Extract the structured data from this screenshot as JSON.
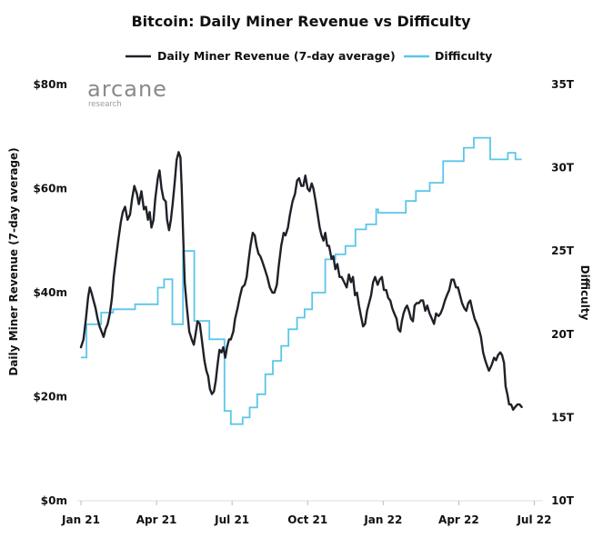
{
  "chart_data": {
    "type": "line",
    "title": "Bitcoin: Daily Miner Revenue vs Difficulty",
    "brand": {
      "name": "arcane",
      "tagline": "research"
    },
    "x_axis": {
      "ticks": [
        "Jan 21",
        "Apr 21",
        "Jul 21",
        "Oct 21",
        "Jan 22",
        "Apr 22",
        "Jul 22"
      ],
      "tick_months": [
        0,
        3,
        6,
        9,
        12,
        15,
        18
      ],
      "range_months": [
        0,
        18.2
      ]
    },
    "y_left": {
      "label": "Daily Miner Revenue (7-day average)",
      "range": [
        0,
        80
      ],
      "ticks": [
        0,
        20,
        40,
        60,
        80
      ],
      "tick_labels": [
        "$0m",
        "$20m",
        "$40m",
        "$60m",
        "$80m"
      ]
    },
    "y_right": {
      "label": "Difficulty",
      "range": [
        10,
        35
      ],
      "ticks": [
        10,
        15,
        20,
        25,
        30,
        35
      ],
      "tick_labels": [
        "10T",
        "15T",
        "20T",
        "25T",
        "30T",
        "35T"
      ]
    },
    "series": [
      {
        "name": "Daily Miner Revenue (7-day average)",
        "axis": "left",
        "unit": "$m",
        "color": "#1f2128",
        "points": [
          [
            0.0,
            29.5
          ],
          [
            0.1,
            31
          ],
          [
            0.2,
            35
          ],
          [
            0.28,
            39
          ],
          [
            0.35,
            41
          ],
          [
            0.42,
            40
          ],
          [
            0.5,
            38.5
          ],
          [
            0.58,
            37
          ],
          [
            0.66,
            35
          ],
          [
            0.74,
            33.5
          ],
          [
            0.82,
            32.5
          ],
          [
            0.9,
            31.5
          ],
          [
            0.98,
            33
          ],
          [
            1.06,
            34
          ],
          [
            1.15,
            36
          ],
          [
            1.23,
            39
          ],
          [
            1.3,
            43
          ],
          [
            1.4,
            47
          ],
          [
            1.48,
            50
          ],
          [
            1.58,
            53.5
          ],
          [
            1.66,
            55.5
          ],
          [
            1.75,
            56.5
          ],
          [
            1.85,
            54
          ],
          [
            1.95,
            55
          ],
          [
            2.03,
            58
          ],
          [
            2.12,
            60.5
          ],
          [
            2.22,
            59
          ],
          [
            2.3,
            57
          ],
          [
            2.4,
            59.5
          ],
          [
            2.5,
            56
          ],
          [
            2.58,
            56.5
          ],
          [
            2.66,
            54
          ],
          [
            2.73,
            55.5
          ],
          [
            2.8,
            52.5
          ],
          [
            2.88,
            54
          ],
          [
            2.95,
            58
          ],
          [
            3.05,
            62
          ],
          [
            3.12,
            63.5
          ],
          [
            3.2,
            60
          ],
          [
            3.28,
            58
          ],
          [
            3.37,
            57.5
          ],
          [
            3.42,
            54
          ],
          [
            3.5,
            52
          ],
          [
            3.57,
            54
          ],
          [
            3.64,
            57
          ],
          [
            3.72,
            61
          ],
          [
            3.8,
            65.5
          ],
          [
            3.88,
            67
          ],
          [
            3.95,
            66
          ],
          [
            4.0,
            60
          ],
          [
            4.05,
            52
          ],
          [
            4.12,
            42
          ],
          [
            4.2,
            37.5
          ],
          [
            4.3,
            32.5
          ],
          [
            4.4,
            31
          ],
          [
            4.48,
            30
          ],
          [
            4.55,
            32
          ],
          [
            4.63,
            34.5
          ],
          [
            4.72,
            34
          ],
          [
            4.8,
            31
          ],
          [
            4.9,
            27
          ],
          [
            4.98,
            25
          ],
          [
            5.05,
            24
          ],
          [
            5.12,
            21.5
          ],
          [
            5.2,
            20.5
          ],
          [
            5.28,
            21
          ],
          [
            5.35,
            23
          ],
          [
            5.42,
            26
          ],
          [
            5.5,
            29
          ],
          [
            5.58,
            28.5
          ],
          [
            5.65,
            29.5
          ],
          [
            5.73,
            27.5
          ],
          [
            5.8,
            29.5
          ],
          [
            5.88,
            31
          ],
          [
            5.95,
            31
          ],
          [
            6.05,
            32.5
          ],
          [
            6.12,
            35
          ],
          [
            6.22,
            37
          ],
          [
            6.3,
            39
          ],
          [
            6.4,
            41
          ],
          [
            6.5,
            41.5
          ],
          [
            6.58,
            43
          ],
          [
            6.65,
            46
          ],
          [
            6.73,
            49
          ],
          [
            6.82,
            51.5
          ],
          [
            6.9,
            51
          ],
          [
            6.97,
            49
          ],
          [
            7.05,
            47.5
          ],
          [
            7.12,
            47
          ],
          [
            7.2,
            46
          ],
          [
            7.3,
            44.5
          ],
          [
            7.4,
            43
          ],
          [
            7.5,
            41
          ],
          [
            7.6,
            40
          ],
          [
            7.68,
            40
          ],
          [
            7.78,
            41.5
          ],
          [
            7.85,
            45
          ],
          [
            7.95,
            49
          ],
          [
            8.05,
            51.5
          ],
          [
            8.12,
            51
          ],
          [
            8.22,
            52.5
          ],
          [
            8.3,
            55
          ],
          [
            8.4,
            57.5
          ],
          [
            8.5,
            59
          ],
          [
            8.58,
            61.5
          ],
          [
            8.66,
            62
          ],
          [
            8.75,
            60.5
          ],
          [
            8.83,
            60.5
          ],
          [
            8.91,
            62.5
          ],
          [
            9.0,
            60
          ],
          [
            9.08,
            59.5
          ],
          [
            9.16,
            61
          ],
          [
            9.23,
            60
          ],
          [
            9.32,
            57.5
          ],
          [
            9.4,
            55
          ],
          [
            9.48,
            52.5
          ],
          [
            9.55,
            51
          ],
          [
            9.63,
            50
          ],
          [
            9.7,
            51.5
          ],
          [
            9.78,
            49
          ],
          [
            9.85,
            49
          ],
          [
            9.95,
            46.5
          ],
          [
            10.02,
            47
          ],
          [
            10.1,
            44.5
          ],
          [
            10.18,
            45.5
          ],
          [
            10.27,
            43
          ],
          [
            10.35,
            43
          ],
          [
            10.45,
            42
          ],
          [
            10.55,
            41
          ],
          [
            10.64,
            43.5
          ],
          [
            10.72,
            42
          ],
          [
            10.8,
            43
          ],
          [
            10.88,
            39.5
          ],
          [
            10.96,
            40
          ],
          [
            11.04,
            37.5
          ],
          [
            11.12,
            35.5
          ],
          [
            11.2,
            33.5
          ],
          [
            11.28,
            34
          ],
          [
            11.36,
            36.5
          ],
          [
            11.44,
            38
          ],
          [
            11.52,
            39.5
          ],
          [
            11.6,
            42
          ],
          [
            11.68,
            43
          ],
          [
            11.78,
            41.5
          ],
          [
            11.86,
            42.5
          ],
          [
            11.95,
            43
          ],
          [
            12.03,
            40.5
          ],
          [
            12.12,
            40.5
          ],
          [
            12.2,
            39
          ],
          [
            12.28,
            38.5
          ],
          [
            12.36,
            37
          ],
          [
            12.44,
            36
          ],
          [
            12.53,
            35
          ],
          [
            12.6,
            33
          ],
          [
            12.68,
            32.5
          ],
          [
            12.74,
            34.5
          ],
          [
            12.81,
            36
          ],
          [
            12.88,
            37
          ],
          [
            12.95,
            37.5
          ],
          [
            13.02,
            36.5
          ],
          [
            13.1,
            35
          ],
          [
            13.18,
            34.5
          ],
          [
            13.25,
            37.5
          ],
          [
            13.33,
            38
          ],
          [
            13.42,
            38
          ],
          [
            13.5,
            38.5
          ],
          [
            13.58,
            38.5
          ],
          [
            13.67,
            36.5
          ],
          [
            13.75,
            37.5
          ],
          [
            13.84,
            36
          ],
          [
            13.93,
            35
          ],
          [
            14.02,
            34
          ],
          [
            14.1,
            36
          ],
          [
            14.2,
            35.5
          ],
          [
            14.28,
            36
          ],
          [
            14.36,
            37
          ],
          [
            14.45,
            38.5
          ],
          [
            14.53,
            39.5
          ],
          [
            14.62,
            40.5
          ],
          [
            14.71,
            42.5
          ],
          [
            14.8,
            42.5
          ],
          [
            14.89,
            41
          ],
          [
            14.97,
            41
          ],
          [
            15.05,
            39.5
          ],
          [
            15.13,
            38
          ],
          [
            15.22,
            37
          ],
          [
            15.3,
            36.5
          ],
          [
            15.38,
            38
          ],
          [
            15.46,
            38.5
          ],
          [
            15.55,
            36.5
          ],
          [
            15.63,
            35
          ],
          [
            15.72,
            34
          ],
          [
            15.8,
            33
          ],
          [
            15.88,
            31.5
          ],
          [
            15.97,
            28.5
          ],
          [
            16.05,
            27
          ],
          [
            16.12,
            26
          ],
          [
            16.2,
            25
          ],
          [
            16.3,
            26
          ],
          [
            16.4,
            27.5
          ],
          [
            16.48,
            27
          ],
          [
            16.56,
            28
          ],
          [
            16.65,
            28.5
          ],
          [
            16.72,
            28
          ],
          [
            16.8,
            26.5
          ],
          [
            16.86,
            22
          ],
          [
            16.93,
            20.5
          ],
          [
            17.0,
            18.5
          ],
          [
            17.08,
            18.5
          ],
          [
            17.16,
            17.5
          ],
          [
            17.24,
            18
          ],
          [
            17.33,
            18.5
          ],
          [
            17.42,
            18.5
          ],
          [
            17.5,
            18
          ]
        ]
      },
      {
        "name": "Difficulty",
        "axis": "right",
        "unit": "T",
        "color": "#5bc6ea",
        "step_points": [
          [
            0.0,
            18.6
          ],
          [
            0.22,
            20.6
          ],
          [
            0.7,
            20.6
          ],
          [
            0.8,
            21.3
          ],
          [
            1.28,
            21.5
          ],
          [
            1.75,
            21.5
          ],
          [
            2.15,
            21.8
          ],
          [
            2.6,
            21.8
          ],
          [
            3.05,
            22.8
          ],
          [
            3.3,
            23.3
          ],
          [
            3.55,
            23.3
          ],
          [
            3.63,
            20.6
          ],
          [
            4.0,
            20.6
          ],
          [
            4.05,
            25.0
          ],
          [
            4.45,
            25.0
          ],
          [
            4.5,
            20.8
          ],
          [
            5.05,
            20.8
          ],
          [
            5.1,
            19.7
          ],
          [
            5.62,
            19.7
          ],
          [
            5.7,
            15.4
          ],
          [
            5.95,
            14.6
          ],
          [
            6.42,
            15.0
          ],
          [
            6.7,
            15.6
          ],
          [
            7.0,
            16.4
          ],
          [
            7.32,
            17.6
          ],
          [
            7.62,
            18.4
          ],
          [
            7.95,
            19.3
          ],
          [
            8.24,
            20.3
          ],
          [
            8.58,
            21.0
          ],
          [
            8.88,
            21.5
          ],
          [
            9.18,
            22.5
          ],
          [
            9.5,
            22.5
          ],
          [
            9.7,
            24.5
          ],
          [
            10.1,
            24.8
          ],
          [
            10.5,
            25.3
          ],
          [
            10.9,
            26.3
          ],
          [
            11.32,
            26.6
          ],
          [
            11.72,
            27.5
          ],
          [
            11.8,
            27.3
          ],
          [
            12.45,
            27.3
          ],
          [
            12.9,
            28.0
          ],
          [
            13.3,
            28.6
          ],
          [
            13.85,
            29.1
          ],
          [
            14.38,
            30.4
          ],
          [
            14.85,
            30.4
          ],
          [
            15.2,
            31.2
          ],
          [
            15.6,
            31.8
          ],
          [
            15.82,
            31.8
          ],
          [
            16.25,
            30.5
          ],
          [
            16.7,
            30.5
          ],
          [
            16.95,
            30.9
          ],
          [
            17.25,
            30.5
          ],
          [
            17.5,
            30.5
          ]
        ]
      }
    ]
  }
}
